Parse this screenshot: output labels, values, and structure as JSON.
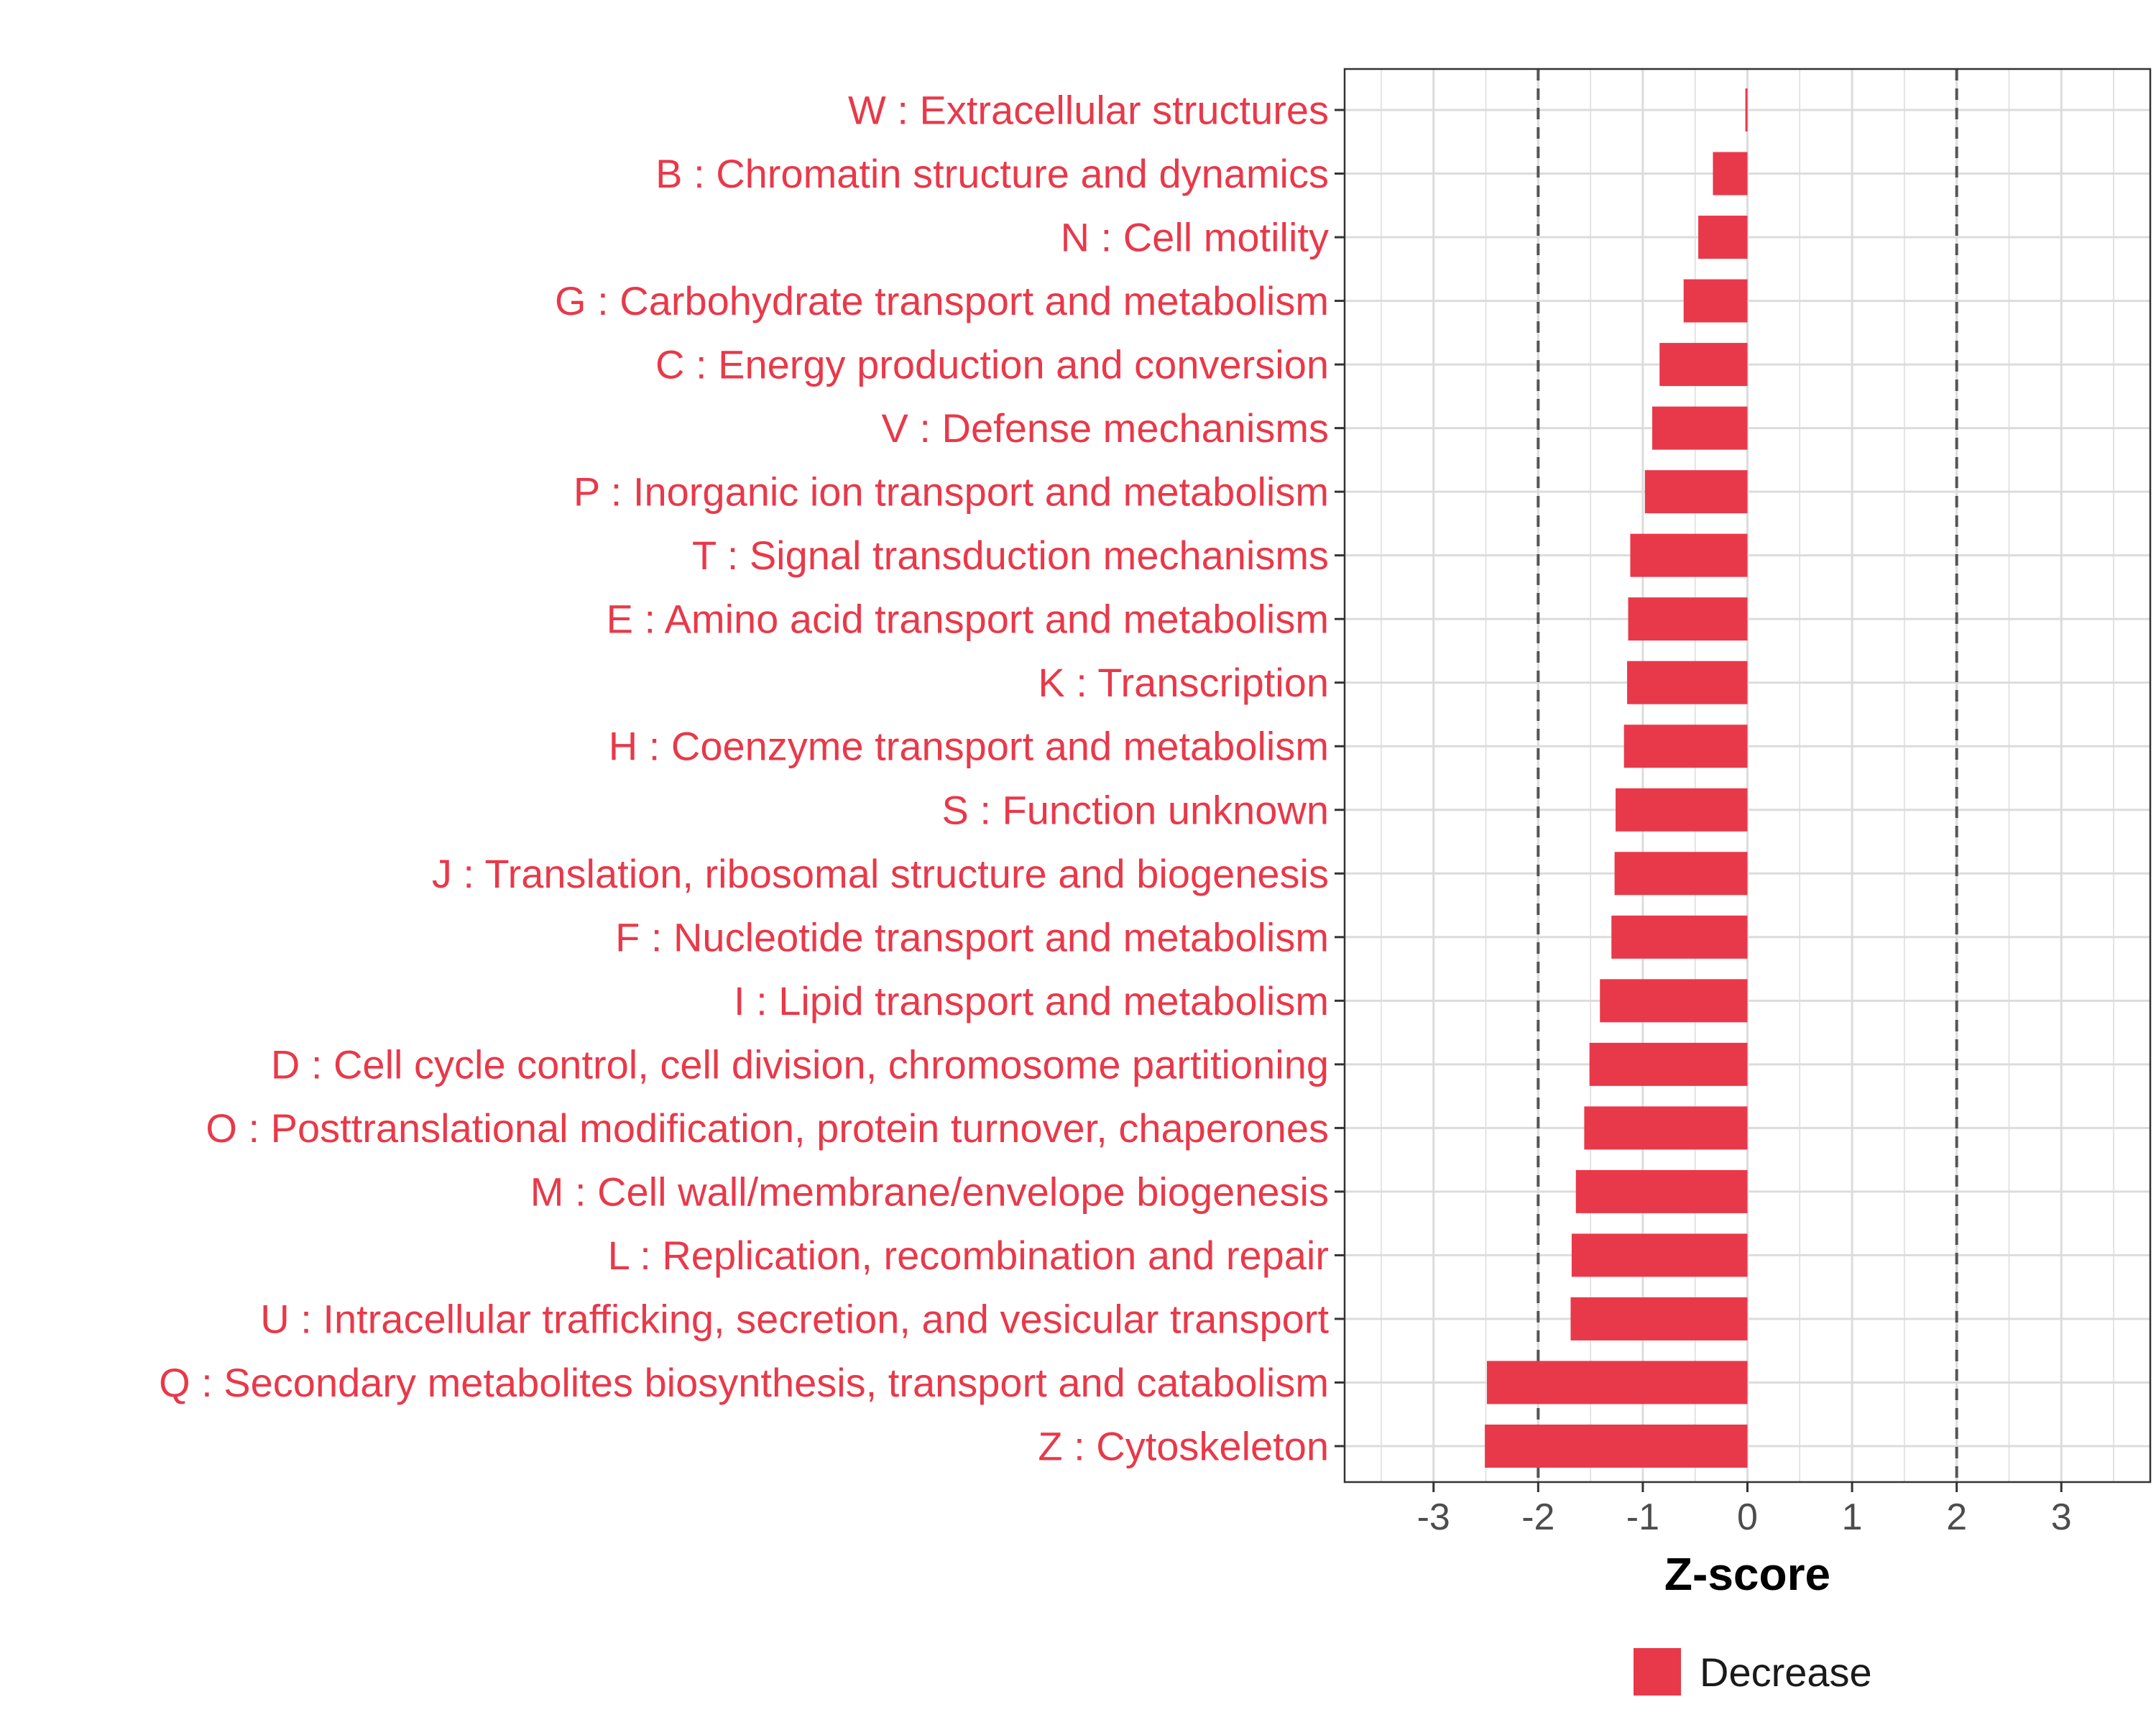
{
  "chart_data": {
    "type": "bar",
    "orientation": "horizontal",
    "title": "",
    "xlabel": "Z-score",
    "ylabel": "",
    "xlim": [
      -3.85,
      3.85
    ],
    "xticks": [
      -3,
      -2,
      -1,
      0,
      1,
      2,
      3
    ],
    "reference_lines": [
      -2,
      2
    ],
    "grid": true,
    "legend_position": "bottom",
    "colors": {
      "bar": "#e8394a",
      "label": "#e8394a",
      "grid": "#dcdcdc",
      "refline": "#555555"
    },
    "categories": [
      "W : Extracellular structures",
      "B : Chromatin structure and dynamics",
      "N : Cell motility",
      "G : Carbohydrate transport and metabolism",
      "C : Energy production and conversion",
      "V : Defense mechanisms",
      "P : Inorganic ion transport and metabolism",
      "T : Signal transduction mechanisms",
      "E : Amino acid transport and metabolism",
      "K : Transcription",
      "H : Coenzyme transport and metabolism",
      "S : Function unknown",
      "J : Translation, ribosomal structure and biogenesis",
      "F : Nucleotide transport and metabolism",
      "I : Lipid transport and metabolism",
      "D : Cell cycle control, cell division, chromosome partitioning",
      "O : Posttranslational modification, protein turnover, chaperones",
      "M : Cell wall/membrane/envelope biogenesis",
      "L : Replication, recombination and repair",
      "U : Intracellular trafficking, secretion, and vesicular transport",
      "Q : Secondary metabolites biosynthesis, transport and catabolism",
      "Z : Cytoskeleton"
    ],
    "series": [
      {
        "name": "Decrease",
        "values": [
          -0.02,
          -0.33,
          -0.47,
          -0.61,
          -0.84,
          -0.91,
          -0.98,
          -1.12,
          -1.14,
          -1.15,
          -1.18,
          -1.26,
          -1.27,
          -1.3,
          -1.41,
          -1.51,
          -1.56,
          -1.64,
          -1.68,
          -1.69,
          -2.49,
          -2.51
        ]
      }
    ]
  }
}
